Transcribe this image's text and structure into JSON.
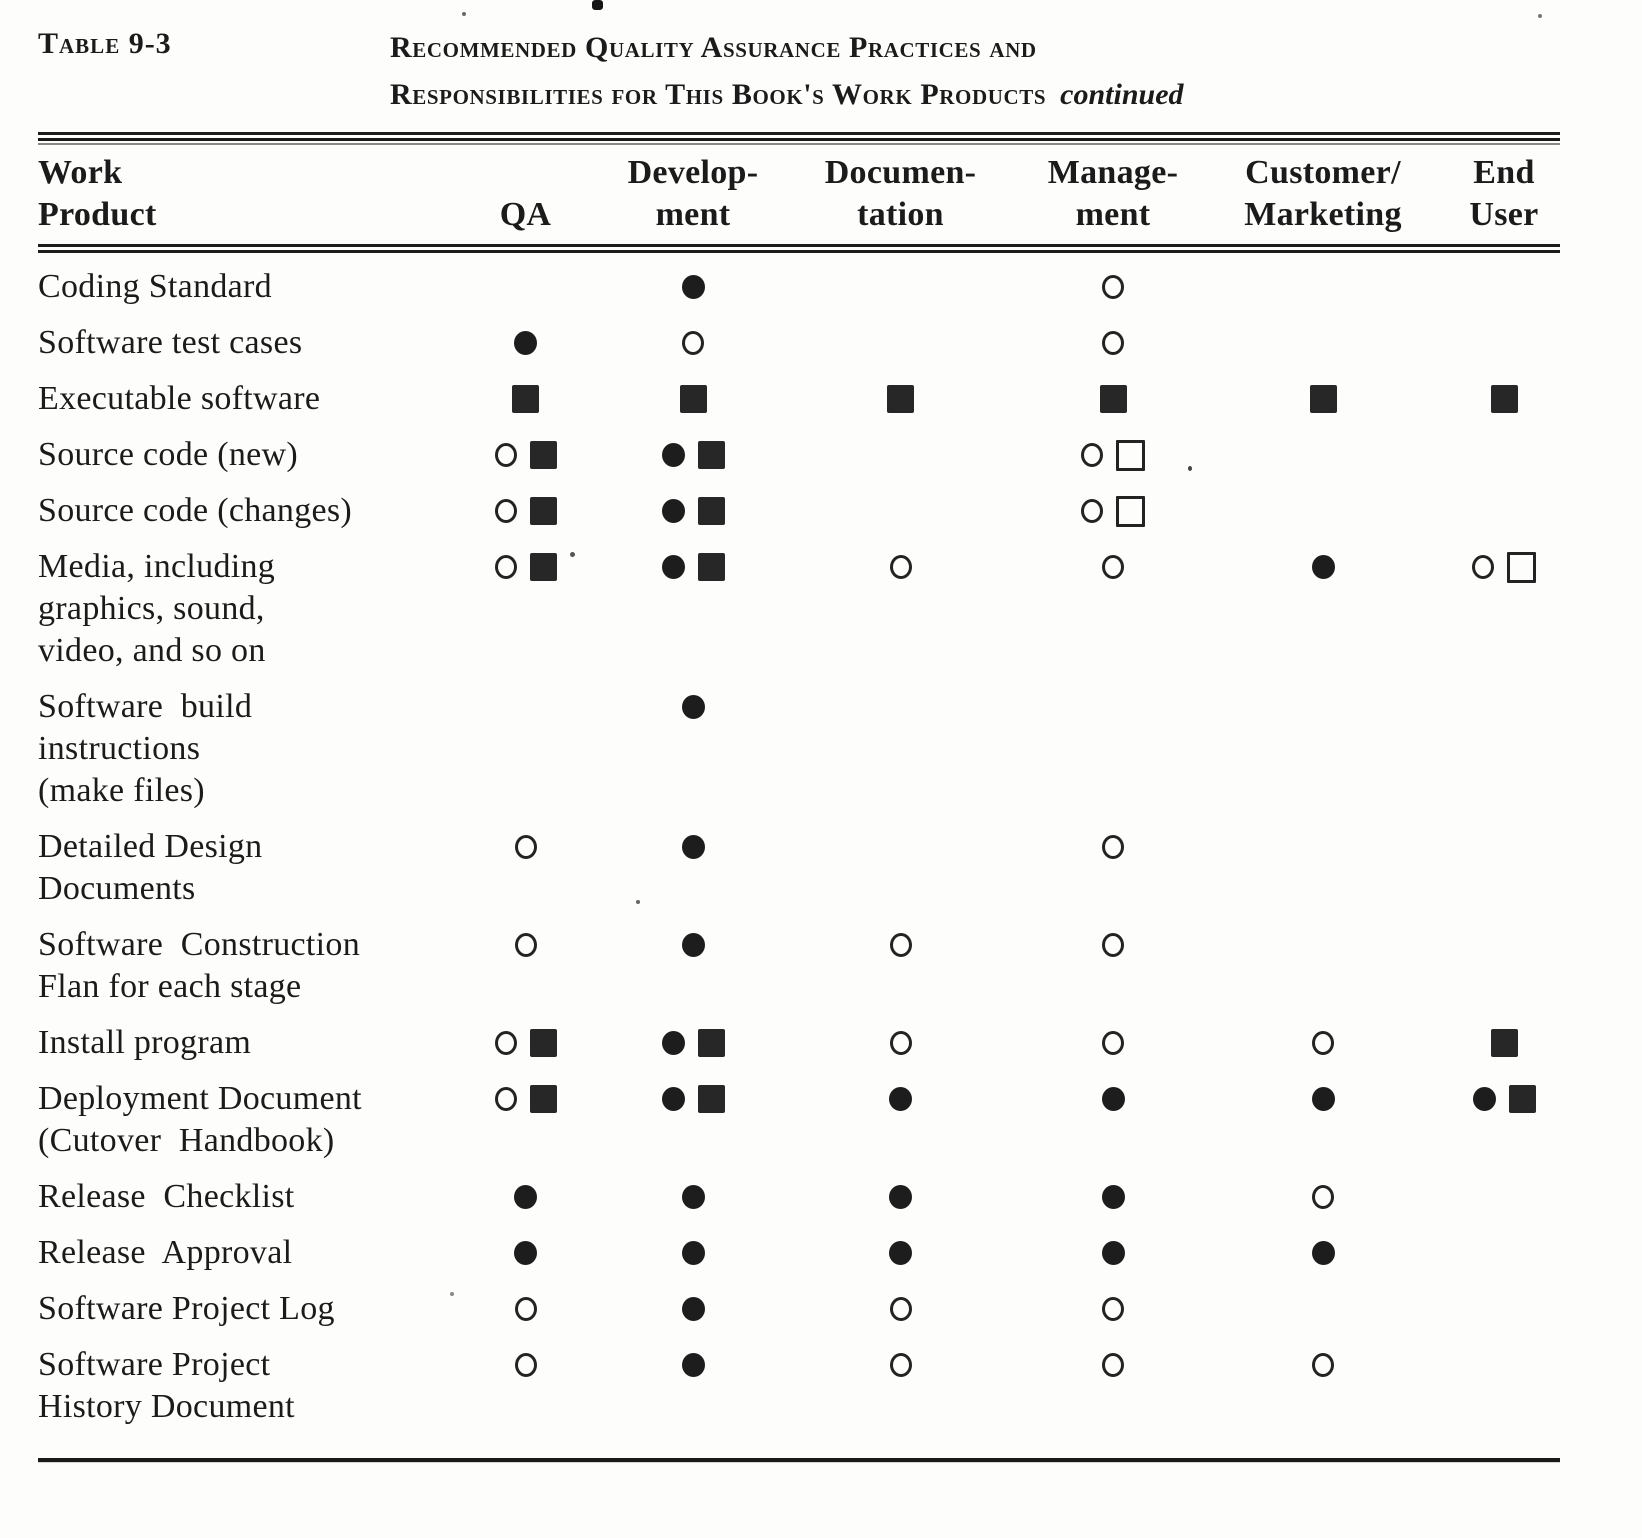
{
  "caption": {
    "label": "Table 9-3",
    "title_line1": "Recommended Quality Assurance Practices and",
    "title_line2": "Responsibilities for This Book's Work Products",
    "continued": "continued"
  },
  "colors": {
    "ink": "#1b1b1b",
    "paper": "#fdfdfb"
  },
  "table": {
    "headers": [
      {
        "key": "work-product",
        "lines": [
          "Work",
          "Product"
        ]
      },
      {
        "key": "qa",
        "lines": [
          "",
          "QA"
        ]
      },
      {
        "key": "development",
        "lines": [
          "Develop-",
          "ment"
        ]
      },
      {
        "key": "documentation",
        "lines": [
          "Documen-",
          "tation"
        ]
      },
      {
        "key": "management",
        "lines": [
          "Manage-",
          "ment"
        ]
      },
      {
        "key": "customer-marketing",
        "lines": [
          "Customer/",
          "Marketing"
        ]
      },
      {
        "key": "end-user",
        "lines": [
          "End",
          "User"
        ]
      }
    ],
    "symbol_names": [
      "filled-circle",
      "open-circle",
      "filled-square",
      "open-square"
    ],
    "rows": [
      {
        "label_lines": [
          "Coding Standard"
        ],
        "cells": [
          [],
          [
            "filled-circle"
          ],
          [],
          [
            "open-circle"
          ],
          [],
          []
        ]
      },
      {
        "label_lines": [
          "Software test cases"
        ],
        "cells": [
          [
            "filled-circle"
          ],
          [
            "open-circle"
          ],
          [],
          [
            "open-circle"
          ],
          [],
          []
        ]
      },
      {
        "label_lines": [
          "Executable software"
        ],
        "cells": [
          [
            "filled-square"
          ],
          [
            "filled-square"
          ],
          [
            "filled-square"
          ],
          [
            "filled-square"
          ],
          [
            "filled-square"
          ],
          [
            "filled-square"
          ]
        ]
      },
      {
        "label_lines": [
          "Source code (new)"
        ],
        "cells": [
          [
            "open-circle",
            "filled-square"
          ],
          [
            "filled-circle",
            "filled-square"
          ],
          [],
          [
            "open-circle",
            "open-square"
          ],
          [],
          []
        ]
      },
      {
        "label_lines": [
          "Source code (changes)"
        ],
        "cells": [
          [
            "open-circle",
            "filled-square"
          ],
          [
            "filled-circle",
            "filled-square"
          ],
          [],
          [
            "open-circle",
            "open-square"
          ],
          [],
          []
        ]
      },
      {
        "label_lines": [
          "Media, including",
          "graphics, sound,",
          "video, and so on"
        ],
        "cells": [
          [
            "open-circle",
            "filled-square"
          ],
          [
            "filled-circle",
            "filled-square"
          ],
          [
            "open-circle"
          ],
          [
            "open-circle"
          ],
          [
            "filled-circle"
          ],
          [
            "open-circle",
            "open-square"
          ]
        ]
      },
      {
        "label_lines": [
          "Software  build",
          "instructions",
          "(make files)"
        ],
        "cells": [
          [],
          [
            "filled-circle"
          ],
          [],
          [],
          [],
          []
        ]
      },
      {
        "label_lines": [
          "Detailed Design",
          "Documents"
        ],
        "cells": [
          [
            "open-circle"
          ],
          [
            "filled-circle"
          ],
          [],
          [
            "open-circle"
          ],
          [],
          []
        ]
      },
      {
        "label_lines": [
          "Software  Construction",
          "Flan for each stage"
        ],
        "cells": [
          [
            "open-circle"
          ],
          [
            "filled-circle"
          ],
          [
            "open-circle"
          ],
          [
            "open-circle"
          ],
          [],
          []
        ]
      },
      {
        "label_lines": [
          "Install program"
        ],
        "cells": [
          [
            "open-circle",
            "filled-square"
          ],
          [
            "filled-circle",
            "filled-square"
          ],
          [
            "open-circle"
          ],
          [
            "open-circle"
          ],
          [
            "open-circle"
          ],
          [
            "filled-square"
          ]
        ]
      },
      {
        "label_lines": [
          "Deployment Document",
          "(Cutover  Handbook)"
        ],
        "cells": [
          [
            "open-circle",
            "filled-square"
          ],
          [
            "filled-circle",
            "filled-square"
          ],
          [
            "filled-circle"
          ],
          [
            "filled-circle"
          ],
          [
            "filled-circle"
          ],
          [
            "filled-circle",
            "filled-square"
          ]
        ]
      },
      {
        "label_lines": [
          "Release  Checklist"
        ],
        "cells": [
          [
            "filled-circle"
          ],
          [
            "filled-circle"
          ],
          [
            "filled-circle"
          ],
          [
            "filled-circle"
          ],
          [
            "open-circle"
          ],
          []
        ]
      },
      {
        "label_lines": [
          "Release  Approval"
        ],
        "cells": [
          [
            "filled-circle"
          ],
          [
            "filled-circle"
          ],
          [
            "filled-circle"
          ],
          [
            "filled-circle"
          ],
          [
            "filled-circle"
          ],
          []
        ]
      },
      {
        "label_lines": [
          "Software Project Log"
        ],
        "cells": [
          [
            "open-circle"
          ],
          [
            "filled-circle"
          ],
          [
            "open-circle"
          ],
          [
            "open-circle"
          ],
          [],
          []
        ]
      },
      {
        "label_lines": [
          "Software Project",
          "History Document"
        ],
        "cells": [
          [
            "open-circle"
          ],
          [
            "filled-circle"
          ],
          [
            "open-circle"
          ],
          [
            "open-circle"
          ],
          [
            "open-circle"
          ],
          []
        ]
      }
    ]
  }
}
